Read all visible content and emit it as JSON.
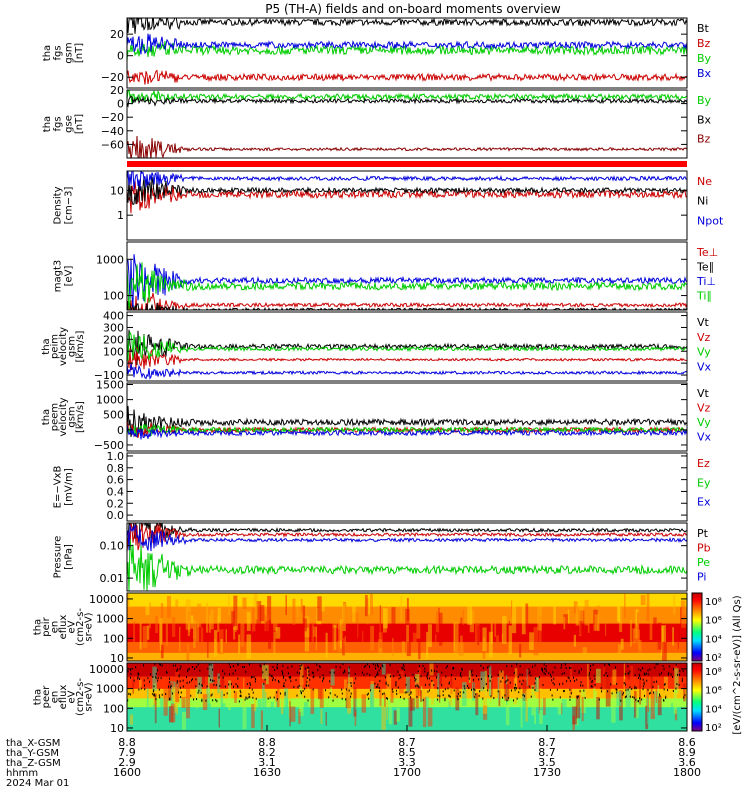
{
  "title": "P5 (TH-A) fields and on-board moments overview",
  "chart_data": [
    {
      "type": "line",
      "id": "fgs_gsm",
      "ylabel": [
        "tha",
        "fgs",
        "gsm",
        "[nT]"
      ],
      "ylim": [
        -30,
        35
      ],
      "yticks": [
        "20",
        "0",
        "−20"
      ],
      "ytick_values": [
        20,
        0,
        -20
      ],
      "series": [
        {
          "name": "Bt",
          "color": "#000000",
          "base": 31,
          "noise": 3,
          "early": 15
        },
        {
          "name": "Bz",
          "color": "#cc0000",
          "base": -20,
          "noise": 3,
          "early": 10
        },
        {
          "name": "By",
          "color": "#00cc00",
          "base": 5,
          "noise": 4,
          "early": 12
        },
        {
          "name": "Bx",
          "color": "#0000dd",
          "base": 10,
          "noise": 3,
          "early": 12
        }
      ]
    },
    {
      "type": "line",
      "id": "fgs_gse",
      "ylabel": [
        "tha",
        "fgs",
        "gse",
        "[nT]"
      ],
      "ylim": [
        -80,
        20
      ],
      "yticks": [
        "20",
        "0",
        "−20",
        "−40",
        "−60"
      ],
      "ytick_values": [
        20,
        0,
        -20,
        -40,
        -60
      ],
      "series": [
        {
          "name": "By",
          "color": "#00cc00",
          "base": 10,
          "noise": 4,
          "early": 10
        },
        {
          "name": "Bx",
          "color": "#000000",
          "base": 4,
          "noise": 3,
          "early": 8
        },
        {
          "name": "Bz",
          "color": "#880000",
          "base": -67,
          "noise": 2,
          "early": 25
        }
      ]
    },
    {
      "type": "line",
      "id": "density",
      "ylabel": [
        "Density",
        "[cm−3]"
      ],
      "yscale": "log",
      "ylim": [
        0.1,
        60
      ],
      "yticks": [
        "10",
        "1"
      ],
      "ytick_values": [
        10,
        1
      ],
      "series": [
        {
          "name": "Ne",
          "color": "#cc0000",
          "base": 7,
          "noise": 0.15,
          "early": 0.8
        },
        {
          "name": "Ni",
          "color": "#000000",
          "base": 10,
          "noise": 0.1,
          "early": 0.8
        },
        {
          "name": "Npot",
          "color": "#0000dd",
          "base": 30,
          "noise": 0.08,
          "early": 0.5
        }
      ]
    },
    {
      "type": "line",
      "id": "temp",
      "ylabel": [
        "magt3",
        "[eV]"
      ],
      "yscale": "log",
      "ylim": [
        40,
        3000
      ],
      "yticks": [
        "1000",
        "100"
      ],
      "ytick_values": [
        1000,
        100
      ],
      "series": [
        {
          "name": "Te⊥",
          "color": "#cc0000",
          "base": 55,
          "noise": 0.05,
          "early": 0.5
        },
        {
          "name": "Te∥",
          "color": "#000000",
          "base": 40,
          "noise": 0.05,
          "early": 0.3
        },
        {
          "name": "Ti⊥",
          "color": "#0000dd",
          "base": 260,
          "noise": 0.08,
          "early": 0.8
        },
        {
          "name": "Ti∥",
          "color": "#00cc00",
          "base": 180,
          "noise": 0.1,
          "early": 0.8
        }
      ]
    },
    {
      "type": "line",
      "id": "peim",
      "ylabel": [
        "tha",
        "peim",
        "velocity",
        "gsm",
        "[km/s]"
      ],
      "ylim": [
        -150,
        430
      ],
      "yticks": [
        "400",
        "300",
        "200",
        "100",
        "0",
        "−100"
      ],
      "ytick_values": [
        400,
        300,
        200,
        100,
        0,
        -100
      ],
      "series": [
        {
          "name": "Vt",
          "color": "#000000",
          "base": 140,
          "noise": 20,
          "early": 180
        },
        {
          "name": "Vz",
          "color": "#cc0000",
          "base": 30,
          "noise": 10,
          "early": 120
        },
        {
          "name": "Vy",
          "color": "#00cc00",
          "base": 120,
          "noise": 15,
          "early": 150
        },
        {
          "name": "Vx",
          "color": "#0000dd",
          "base": -80,
          "noise": 12,
          "early": 80
        }
      ]
    },
    {
      "type": "line",
      "id": "peem",
      "ylabel": [
        "tha",
        "peem",
        "velocity",
        "gsm",
        "[km/s]"
      ],
      "ylim": [
        -700,
        1550
      ],
      "yticks": [
        "1500",
        "1000",
        "500",
        "0",
        "−500"
      ],
      "ytick_values": [
        1500,
        1000,
        500,
        0,
        -500
      ],
      "series": [
        {
          "name": "Vt",
          "color": "#000000",
          "base": 250,
          "noise": 100,
          "early": 500
        },
        {
          "name": "Vz",
          "color": "#cc0000",
          "base": 0,
          "noise": 80,
          "early": 250
        },
        {
          "name": "Vy",
          "color": "#00cc00",
          "base": 0,
          "noise": 80,
          "early": 250
        },
        {
          "name": "Vx",
          "color": "#0000dd",
          "base": -100,
          "noise": 80,
          "early": 250
        }
      ]
    },
    {
      "type": "line",
      "id": "efield",
      "ylabel": [
        "E=−VxB",
        "[mV/m]"
      ],
      "ylim": [
        -0.1,
        1.05
      ],
      "yticks": [
        "1.0",
        "0.8",
        "0.6",
        "0.4",
        "0.2",
        "0.0"
      ],
      "ytick_values": [
        1.0,
        0.8,
        0.6,
        0.4,
        0.2,
        0.0
      ],
      "series": [
        {
          "name": "Ez",
          "color": "#cc0000"
        },
        {
          "name": "Ey",
          "color": "#00cc00"
        },
        {
          "name": "Ex",
          "color": "#0000dd"
        }
      ]
    },
    {
      "type": "line",
      "id": "pressure",
      "ylabel": [
        "Pressure",
        "[nPa]"
      ],
      "yscale": "log",
      "ylim": [
        0.004,
        0.5
      ],
      "yticks": [
        "0.10",
        "0.01"
      ],
      "ytick_values": [
        0.1,
        0.01
      ],
      "series": [
        {
          "name": "Pt",
          "color": "#000000",
          "base": 0.3,
          "noise": 0.05,
          "early": 0.5
        },
        {
          "name": "Pb",
          "color": "#cc0000",
          "base": 0.22,
          "noise": 0.05,
          "early": 0.6
        },
        {
          "name": "Pe",
          "color": "#00cc00",
          "base": 0.018,
          "noise": 0.12,
          "early": 1.0
        },
        {
          "name": "Pi",
          "color": "#0000dd",
          "base": 0.15,
          "noise": 0.05,
          "early": 0.5
        }
      ]
    },
    {
      "type": "heatmap",
      "id": "peir",
      "ylabel": [
        "tha",
        "peir",
        "en",
        "eflux",
        "eV",
        "(cm2-s-",
        "sr-eV)"
      ],
      "yscale": "log",
      "ylim": [
        7,
        20000
      ],
      "yticks": [
        "10000",
        "1000",
        "100",
        "10"
      ],
      "ytick_values": [
        10000,
        1000,
        100,
        10
      ],
      "bands": [
        [
          "#ffd800",
          0
        ],
        [
          "#ff8c00",
          0.2
        ],
        [
          "#e80000",
          0.45
        ],
        [
          "#ff6000",
          0.72
        ],
        [
          "#ffb000",
          0.88
        ],
        [
          "#ffea00",
          1
        ]
      ]
    },
    {
      "type": "heatmap",
      "id": "peer",
      "ylabel": [
        "tha",
        "peer",
        "en",
        "eflux",
        "eV",
        "(cm2-s-",
        "sr-eV)"
      ],
      "yscale": "log",
      "ylim": [
        7,
        20000
      ],
      "yticks": [
        "10000",
        "1000",
        "100",
        "10"
      ],
      "ytick_values": [
        10000,
        1000,
        100,
        10
      ],
      "bands": [
        [
          "#c80000",
          0
        ],
        [
          "#ff3000",
          0.2
        ],
        [
          "#ffc000",
          0.38
        ],
        [
          "#a0ff40",
          0.52
        ],
        [
          "#30e0a0",
          0.65
        ],
        [
          "#20e0c0",
          1
        ]
      ]
    }
  ],
  "colorbar": {
    "label": "[eV/(cm^2-s-sr-eV)] (All Qs)",
    "ticks": [
      "10⁸",
      "10⁶",
      "10⁴",
      "10²"
    ]
  },
  "xaxis": {
    "ticks": [
      "1600",
      "1630",
      "1700",
      "1730",
      "1800"
    ],
    "row_labels": [
      "tha_X-GSM",
      "tha_Y-GSM",
      "tha_Z-GSM",
      "hhmm",
      "2024 Mar 01"
    ],
    "rows": [
      [
        "8.8",
        "8.8",
        "8.7",
        "8.7",
        "8.6"
      ],
      [
        "7.9",
        "8.2",
        "8.5",
        "8.7",
        "8.9"
      ],
      [
        "2.9",
        "3.1",
        "3.3",
        "3.5",
        "3.6"
      ]
    ]
  }
}
